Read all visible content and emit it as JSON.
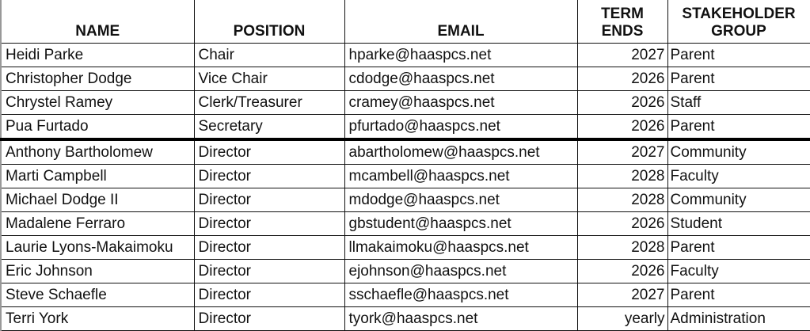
{
  "headers": {
    "name": "NAME",
    "position": "POSITION",
    "email": "EMAIL",
    "term_line1": "TERM",
    "term_line2": "ENDS",
    "group_line1": "STAKEHOLDER",
    "group_line2": "GROUP"
  },
  "rows": [
    {
      "name": "Heidi Parke",
      "position": "Chair",
      "email": "hparke@haaspcs.net",
      "term": "2027",
      "group": "Parent"
    },
    {
      "name": "Christopher Dodge",
      "position": "Vice Chair",
      "email": "cdodge@haaspcs.net",
      "term": "2026",
      "group": "Parent"
    },
    {
      "name": "Chrystel Ramey",
      "position": "Clerk/Treasurer",
      "email": "cramey@haaspcs.net",
      "term": "2026",
      "group": "Staff"
    },
    {
      "name": "Pua Furtado",
      "position": "Secretary",
      "email": "pfurtado@haaspcs.net",
      "term": "2026",
      "group": "Parent"
    },
    {
      "name": "Anthony Bartholomew",
      "position": "Director",
      "email": "abartholomew@haaspcs.net",
      "term": "2027",
      "group": "Community"
    },
    {
      "name": "Marti Campbell",
      "position": "Director",
      "email": "mcambell@haaspcs.net",
      "term": "2028",
      "group": "Faculty"
    },
    {
      "name": "Michael Dodge II",
      "position": "Director",
      "email": "mdodge@haaspcs.net",
      "term": "2028",
      "group": "Community"
    },
    {
      "name": "Madalene Ferraro",
      "position": "Director",
      "email": "gbstudent@haaspcs.net",
      "term": "2026",
      "group": "Student"
    },
    {
      "name": "Laurie Lyons-Makaimoku",
      "position": "Director",
      "email": "llmakaimoku@haaspcs.net",
      "term": "2028",
      "group": "Parent"
    },
    {
      "name": "Eric Johnson",
      "position": "Director",
      "email": "ejohnson@haaspcs.net",
      "term": "2026",
      "group": "Faculty"
    },
    {
      "name": "Steve Schaefle",
      "position": "Director",
      "email": "sschaefle@haaspcs.net",
      "term": "2027",
      "group": "Parent"
    },
    {
      "name": "Terri York",
      "position": "Director",
      "email": "tyork@haaspcs.net",
      "term": "yearly",
      "group": "Administration"
    }
  ]
}
